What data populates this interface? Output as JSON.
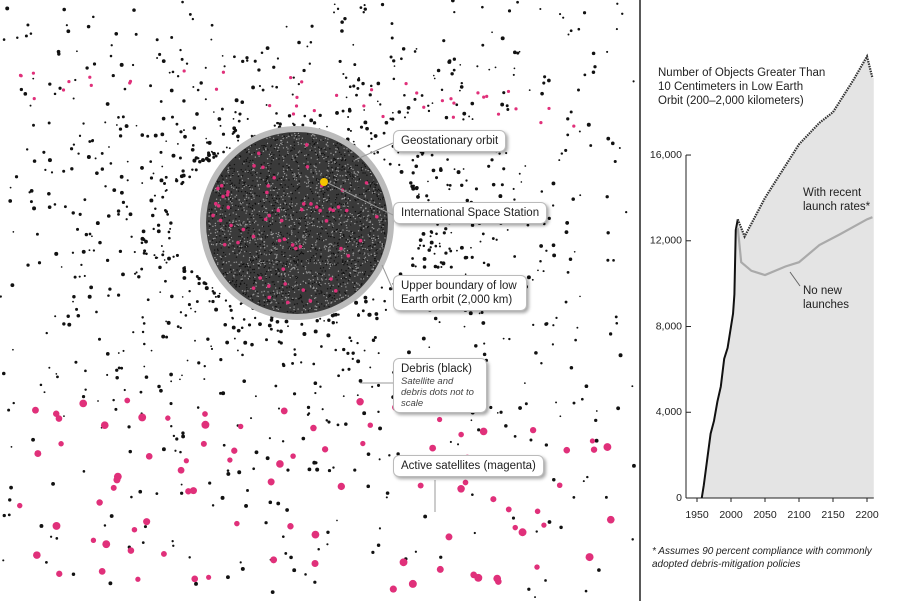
{
  "illustration": {
    "labels": [
      "Geostationary orbit",
      "International Space Station",
      "Upper boundary of low Earth orbit (2,000 km)",
      "Debris (black)",
      "Satellite and debris dots not to scale",
      "Active satellites (magenta)"
    ]
  },
  "chart_data": {
    "type": "line",
    "title": "Number of Objects Greater Than 10 Centimeters in Low Earth Orbit (200–2,000 kilometers)",
    "footnote": "* Assumes 90 percent compliance with commonly adopted debris-mitigation policies",
    "xlim": [
      1934,
      2210
    ],
    "xticks": [
      1950,
      2000,
      2050,
      2100,
      2150,
      2200
    ],
    "ylim": [
      0,
      21600
    ],
    "yticks": [
      0,
      {
        "value": 4000,
        "label": "4,000"
      },
      {
        "value": 8000,
        "label": "8,000"
      },
      {
        "value": 12000,
        "label": "12,000"
      },
      {
        "value": 16000,
        "label": "16,000"
      }
    ],
    "series": [
      {
        "color": "#111111",
        "x": [
          1957,
          1960,
          1965,
          1970,
          1975,
          1980,
          1985,
          1990,
          1995,
          2000,
          2003,
          2005,
          2007,
          2010
        ],
        "values": [
          0,
          600,
          1800,
          3000,
          3600,
          4500,
          5200,
          6500,
          7000,
          8000,
          8600,
          9500,
          12500,
          13000
        ]
      },
      {
        "name": "With recent launch rates*",
        "color": "#333333",
        "x": [
          2010,
          2020,
          2030,
          2050,
          2070,
          2100,
          2130,
          2150,
          2180,
          2200,
          2208
        ],
        "values": [
          13000,
          12200,
          12800,
          14000,
          15000,
          16500,
          17500,
          18000,
          19500,
          20600,
          19600
        ]
      },
      {
        "name": "No new launches",
        "color": "#aaaaaa",
        "x": [
          2010,
          2015,
          2030,
          2050,
          2080,
          2100,
          2130,
          2160,
          2200,
          2208
        ],
        "values": [
          12600,
          11000,
          10600,
          10400,
          10800,
          11000,
          11800,
          12300,
          13000,
          13100
        ]
      }
    ]
  }
}
